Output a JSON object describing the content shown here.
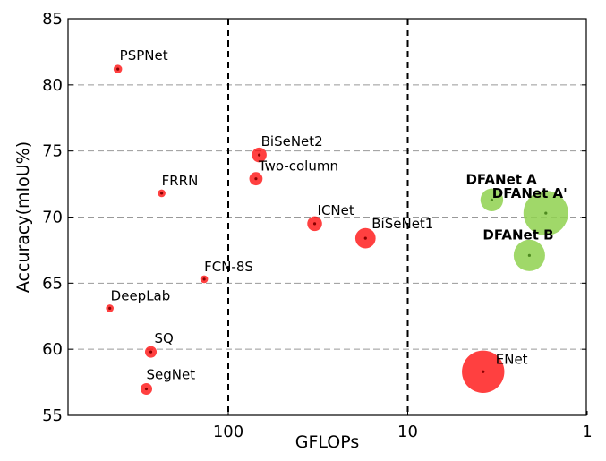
{
  "chart_data": {
    "type": "scatter",
    "title": "",
    "xlabel": "GFLOPs",
    "ylabel": "Accuracy(mIoU%)",
    "x_scale": "log",
    "x_reversed": true,
    "xlim": [
      500,
      1
    ],
    "ylim": [
      55,
      85
    ],
    "x_ticks": [
      100,
      10,
      1
    ],
    "y_ticks": [
      55,
      60,
      65,
      70,
      75,
      80,
      85
    ],
    "grid": {
      "y": "dashed",
      "x_lines_at": [
        100,
        10
      ]
    },
    "colors": {
      "others": "#ff0000",
      "dfanet": "#8fd14f",
      "dot_others": "#8b0000",
      "dot_dfanet": "#4d8a1f"
    },
    "points": [
      {
        "label": "PSPNet",
        "gflops": 412.2,
        "miou": 81.2,
        "size": 0.4,
        "group": "others"
      },
      {
        "label": "FRRN",
        "gflops": 235,
        "miou": 71.8,
        "size": 0.3,
        "group": "others"
      },
      {
        "label": "DeepLab",
        "gflops": 457,
        "miou": 63.1,
        "size": 0.3,
        "group": "others"
      },
      {
        "label": "FCN-8S",
        "gflops": 136.2,
        "miou": 65.3,
        "size": 0.3,
        "group": "others"
      },
      {
        "label": "SQ",
        "gflops": 270,
        "miou": 59.8,
        "size": 0.8,
        "group": "others"
      },
      {
        "label": "SegNet",
        "gflops": 286,
        "miou": 57.0,
        "size": 0.8,
        "group": "others"
      },
      {
        "label": "BiSeNet2",
        "gflops": 67.2,
        "miou": 74.7,
        "size": 1.2,
        "group": "others"
      },
      {
        "label": "Two-column",
        "gflops": 70.1,
        "miou": 72.9,
        "size": 1.0,
        "group": "others"
      },
      {
        "label": "ICNet",
        "gflops": 33,
        "miou": 69.5,
        "size": 1.2,
        "group": "others"
      },
      {
        "label": "BiSeNet1",
        "gflops": 17.2,
        "miou": 68.4,
        "size": 1.9,
        "group": "others"
      },
      {
        "label": "ENet",
        "gflops": 3.8,
        "miou": 58.3,
        "size": 4.7,
        "group": "others"
      },
      {
        "label": "DFANet A",
        "gflops": 3.4,
        "miou": 71.3,
        "size": 2.2,
        "group": "dfanet"
      },
      {
        "label": "DFANet A'",
        "gflops": 1.7,
        "miou": 70.3,
        "size": 5.0,
        "group": "dfanet"
      },
      {
        "label": "DFANet B",
        "gflops": 2.1,
        "miou": 67.1,
        "size": 3.3,
        "group": "dfanet"
      }
    ]
  }
}
